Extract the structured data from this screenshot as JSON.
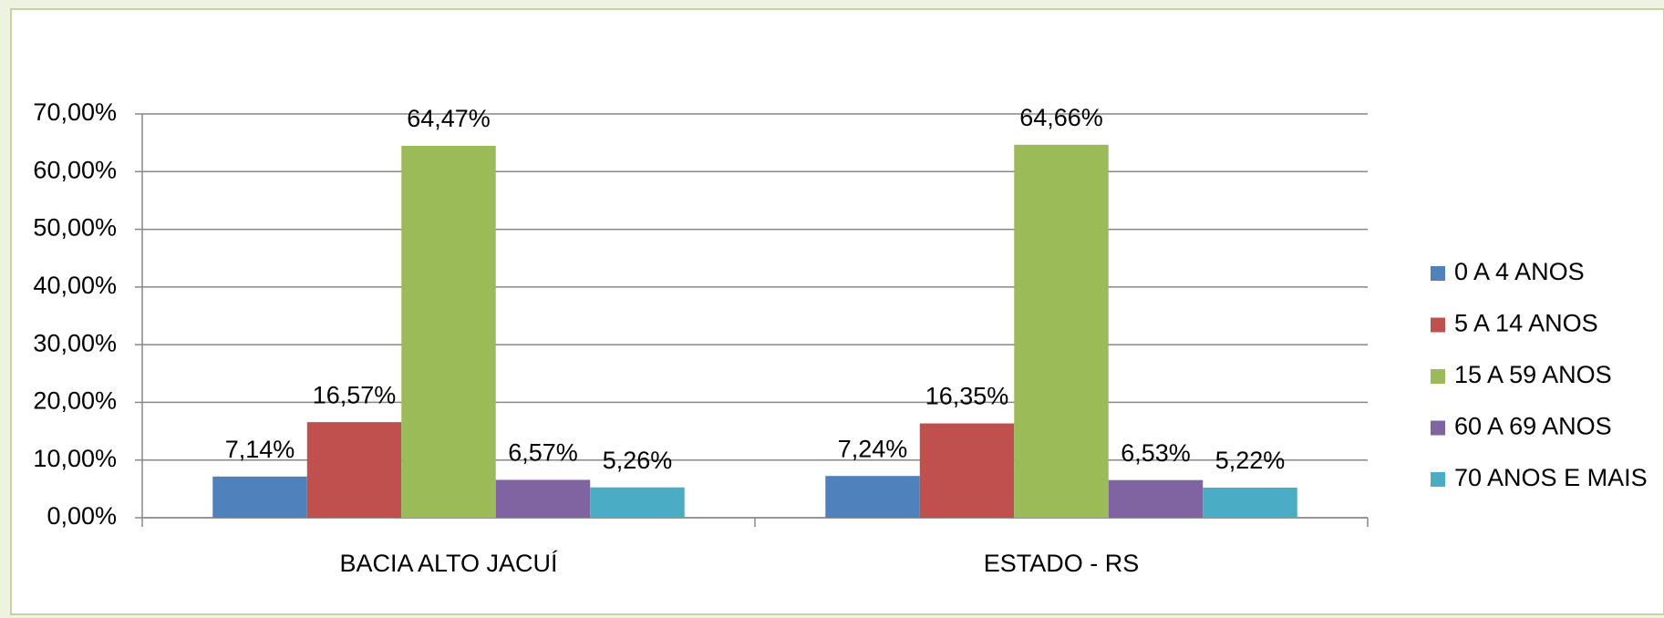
{
  "chart_data": {
    "type": "bar",
    "categories": [
      "BACIA ALTO JACUÍ",
      "ESTADO - RS"
    ],
    "series": [
      {
        "name": "0 A 4 ANOS",
        "color": "#4f81bd",
        "values": [
          7.14,
          7.24
        ],
        "value_labels": [
          "7,14%",
          "7,24%"
        ]
      },
      {
        "name": "5 A 14 ANOS",
        "color": "#c0504d",
        "values": [
          16.57,
          16.35
        ],
        "value_labels": [
          "16,57%",
          "16,35%"
        ]
      },
      {
        "name": "15 A 59 ANOS",
        "color": "#9bbb59",
        "values": [
          64.47,
          64.66
        ],
        "value_labels": [
          "64,47%",
          "64,66%"
        ]
      },
      {
        "name": "60 A 69 ANOS",
        "color": "#8064a2",
        "values": [
          6.57,
          6.53
        ],
        "value_labels": [
          "6,57%",
          "6,53%"
        ]
      },
      {
        "name": "70 ANOS E MAIS",
        "color": "#4bacc6",
        "values": [
          5.26,
          5.22
        ],
        "value_labels": [
          "5,26%",
          "5,22%"
        ]
      }
    ],
    "ylim": [
      0,
      70
    ],
    "yticks": [
      {
        "value": 0,
        "label": "0,00%"
      },
      {
        "value": 10,
        "label": "10,00%"
      },
      {
        "value": 20,
        "label": "20,00%"
      },
      {
        "value": 30,
        "label": "30,00%"
      },
      {
        "value": 40,
        "label": "40,00%"
      },
      {
        "value": 50,
        "label": "50,00%"
      },
      {
        "value": 60,
        "label": "60,00%"
      },
      {
        "value": 70,
        "label": "70,00%"
      }
    ],
    "grid": true,
    "legend": "right"
  }
}
